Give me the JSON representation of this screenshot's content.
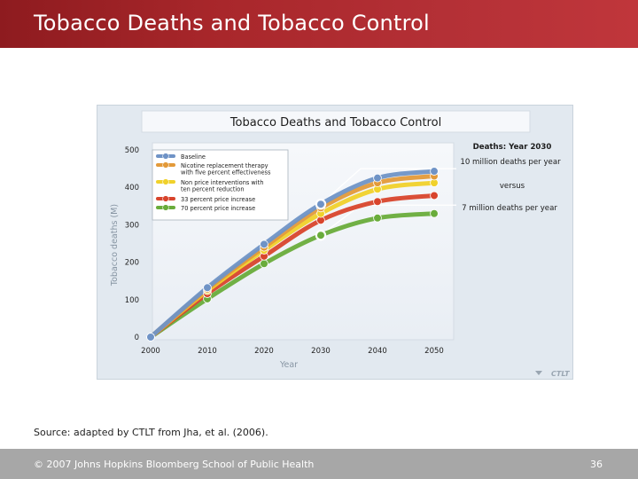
{
  "slide": {
    "title": "Tobacco Deaths and Tobacco Control",
    "source": "Source: adapted by CTLT from Jha, et al. (2006).",
    "footer": "© 2007 Johns Hopkins Bloomberg School of Public Health",
    "page_number": "36",
    "logo": "CTLT"
  },
  "colors": {
    "title_bar": "#a9272b",
    "chart_bg": "#e2e9f0",
    "panel_bg": "#f4f7fa"
  },
  "chart_data": {
    "type": "line",
    "title": "Tobacco Deaths and Tobacco Control",
    "xlabel": "Year",
    "ylabel": "Tobacco deaths (M)",
    "x": [
      2000,
      2010,
      2020,
      2030,
      2040,
      2050
    ],
    "yticks": [
      0,
      100,
      200,
      300,
      400,
      500
    ],
    "xlim": [
      2000,
      2050
    ],
    "ylim": [
      0,
      500
    ],
    "series": [
      {
        "name": "Baseline",
        "color": "#6f93c6",
        "values": [
          0,
          132,
          248,
          355,
          425,
          443
        ]
      },
      {
        "name": "Nicotine replacement therapy with five percent effectiveness",
        "color": "#e39a3a",
        "values": [
          0,
          128,
          240,
          345,
          412,
          430
        ]
      },
      {
        "name": "Non price interventions with ten percent reduction",
        "color": "#f0d12b",
        "values": [
          0,
          124,
          232,
          330,
          395,
          412
        ]
      },
      {
        "name": "33 percent price increase",
        "color": "#d8442c",
        "values": [
          0,
          116,
          216,
          312,
          362,
          378
        ]
      },
      {
        "name": "70 percent price increase",
        "color": "#69ac3b",
        "values": [
          0,
          102,
          196,
          272,
          318,
          330
        ]
      }
    ],
    "legend_position": "top-left",
    "annotation": {
      "heading": "Deaths: Year 2030",
      "high": "10 million deaths per year",
      "middle": "versus",
      "low": "7 million deaths per year"
    }
  }
}
